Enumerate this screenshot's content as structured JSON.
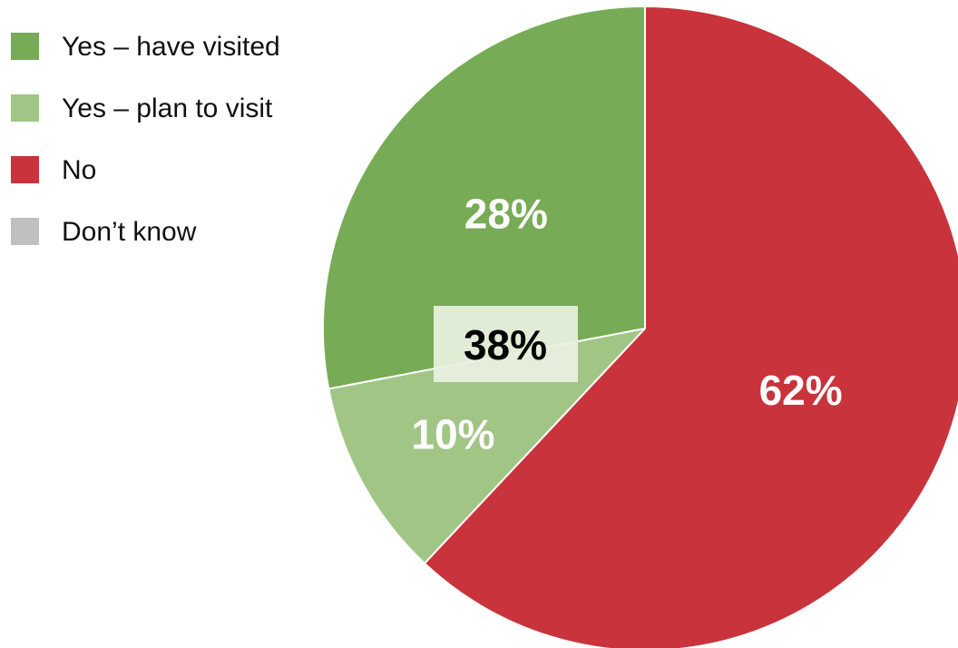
{
  "chart_data": {
    "type": "pie",
    "legend_position": "top-left",
    "slices": [
      {
        "label": "Yes – have visited",
        "value": 28,
        "value_label": "28%",
        "color": "#77AB55",
        "label_color": "#ffffff"
      },
      {
        "label": "Yes – plan to visit",
        "value": 10,
        "value_label": "10%",
        "color": "#A1C585",
        "label_color": "#ffffff"
      },
      {
        "label": "No",
        "value": 62,
        "value_label": "62%",
        "color": "#C8333C",
        "label_color": "#ffffff"
      },
      {
        "label": "Don’t know",
        "value": 0,
        "value_label": "",
        "color": "#C0C0C0",
        "label_color": "#ffffff"
      }
    ],
    "annotations": [
      {
        "text": "38%",
        "box_color": "#EAF1E2",
        "text_color": "#000000"
      }
    ]
  }
}
